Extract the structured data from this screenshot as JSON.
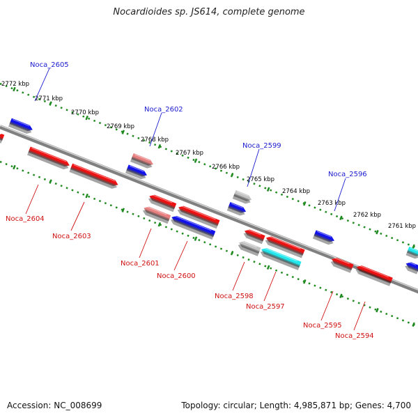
{
  "title": "Nocardioides sp. JS614, complete genome",
  "footer": {
    "accession": "Accession: NC_008699",
    "summary": "Topology: circular; Length: 4,985,871 bp; Genes: 4,700"
  },
  "colors": {
    "forward_label": "#1a1ad0",
    "reverse_label": "#d01010",
    "backbone": "#808080",
    "tick_dots": "#1f8a1f",
    "gene_red": "#ee1111",
    "gene_blue": "#1111ee",
    "gene_pink": "#e88080",
    "gene_grey": "#c4c4c4",
    "gene_cyan": "#22e8ee"
  },
  "scale_labels": [
    "2772 kbp",
    "2771 kbp",
    "2770 kbp",
    "2769 kbp",
    "2768 kbp",
    "2767 kbp",
    "2766 kbp",
    "2765 kbp",
    "2764 kbp",
    "2763 kbp",
    "2762 kbp",
    "2761 kbp"
  ],
  "forward_labels": [
    "Noca_2605",
    "Noca_2602",
    "Noca_2599",
    "Noca_2596"
  ],
  "reverse_labels": [
    "Noca_2604",
    "Noca_2603",
    "Noca_2601",
    "Noca_2600",
    "Noca_2598",
    "Noca_2597",
    "Noca_2595",
    "Noca_2594"
  ]
}
